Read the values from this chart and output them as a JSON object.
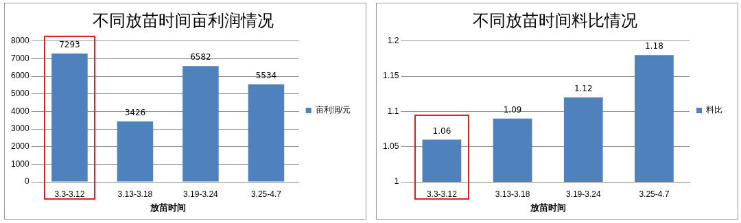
{
  "chart_data": [
    {
      "type": "bar",
      "title": "不同放苗时间亩利润情况",
      "xlabel": "放苗时间",
      "categories": [
        "3.3-3.12",
        "3.13-3.18",
        "3.19-3.24",
        "3.25-4.7"
      ],
      "series": [
        {
          "name": "亩利润/元",
          "color": "#4f81bd",
          "values": [
            7293,
            3426,
            6582,
            5534
          ]
        }
      ],
      "ylim": [
        0,
        8000
      ],
      "yticks": [
        0,
        1000,
        2000,
        3000,
        4000,
        5000,
        6000,
        7000,
        8000
      ],
      "grid": "y",
      "legend": "right",
      "data_labels": true
    },
    {
      "type": "bar",
      "title": "不同放苗时间料比情况",
      "xlabel": "放苗时间",
      "categories": [
        "3.3-3.12",
        "3.13-3.18",
        "3.19-3.24",
        "3.25-4.7"
      ],
      "series": [
        {
          "name": "料比",
          "color": "#4f81bd",
          "values": [
            1.06,
            1.09,
            1.12,
            1.18
          ]
        }
      ],
      "ylim": [
        1,
        1.2
      ],
      "yticks": [
        1,
        1.05,
        1.1,
        1.15,
        1.2
      ],
      "grid": "y",
      "legend": "right",
      "data_labels": true
    }
  ]
}
